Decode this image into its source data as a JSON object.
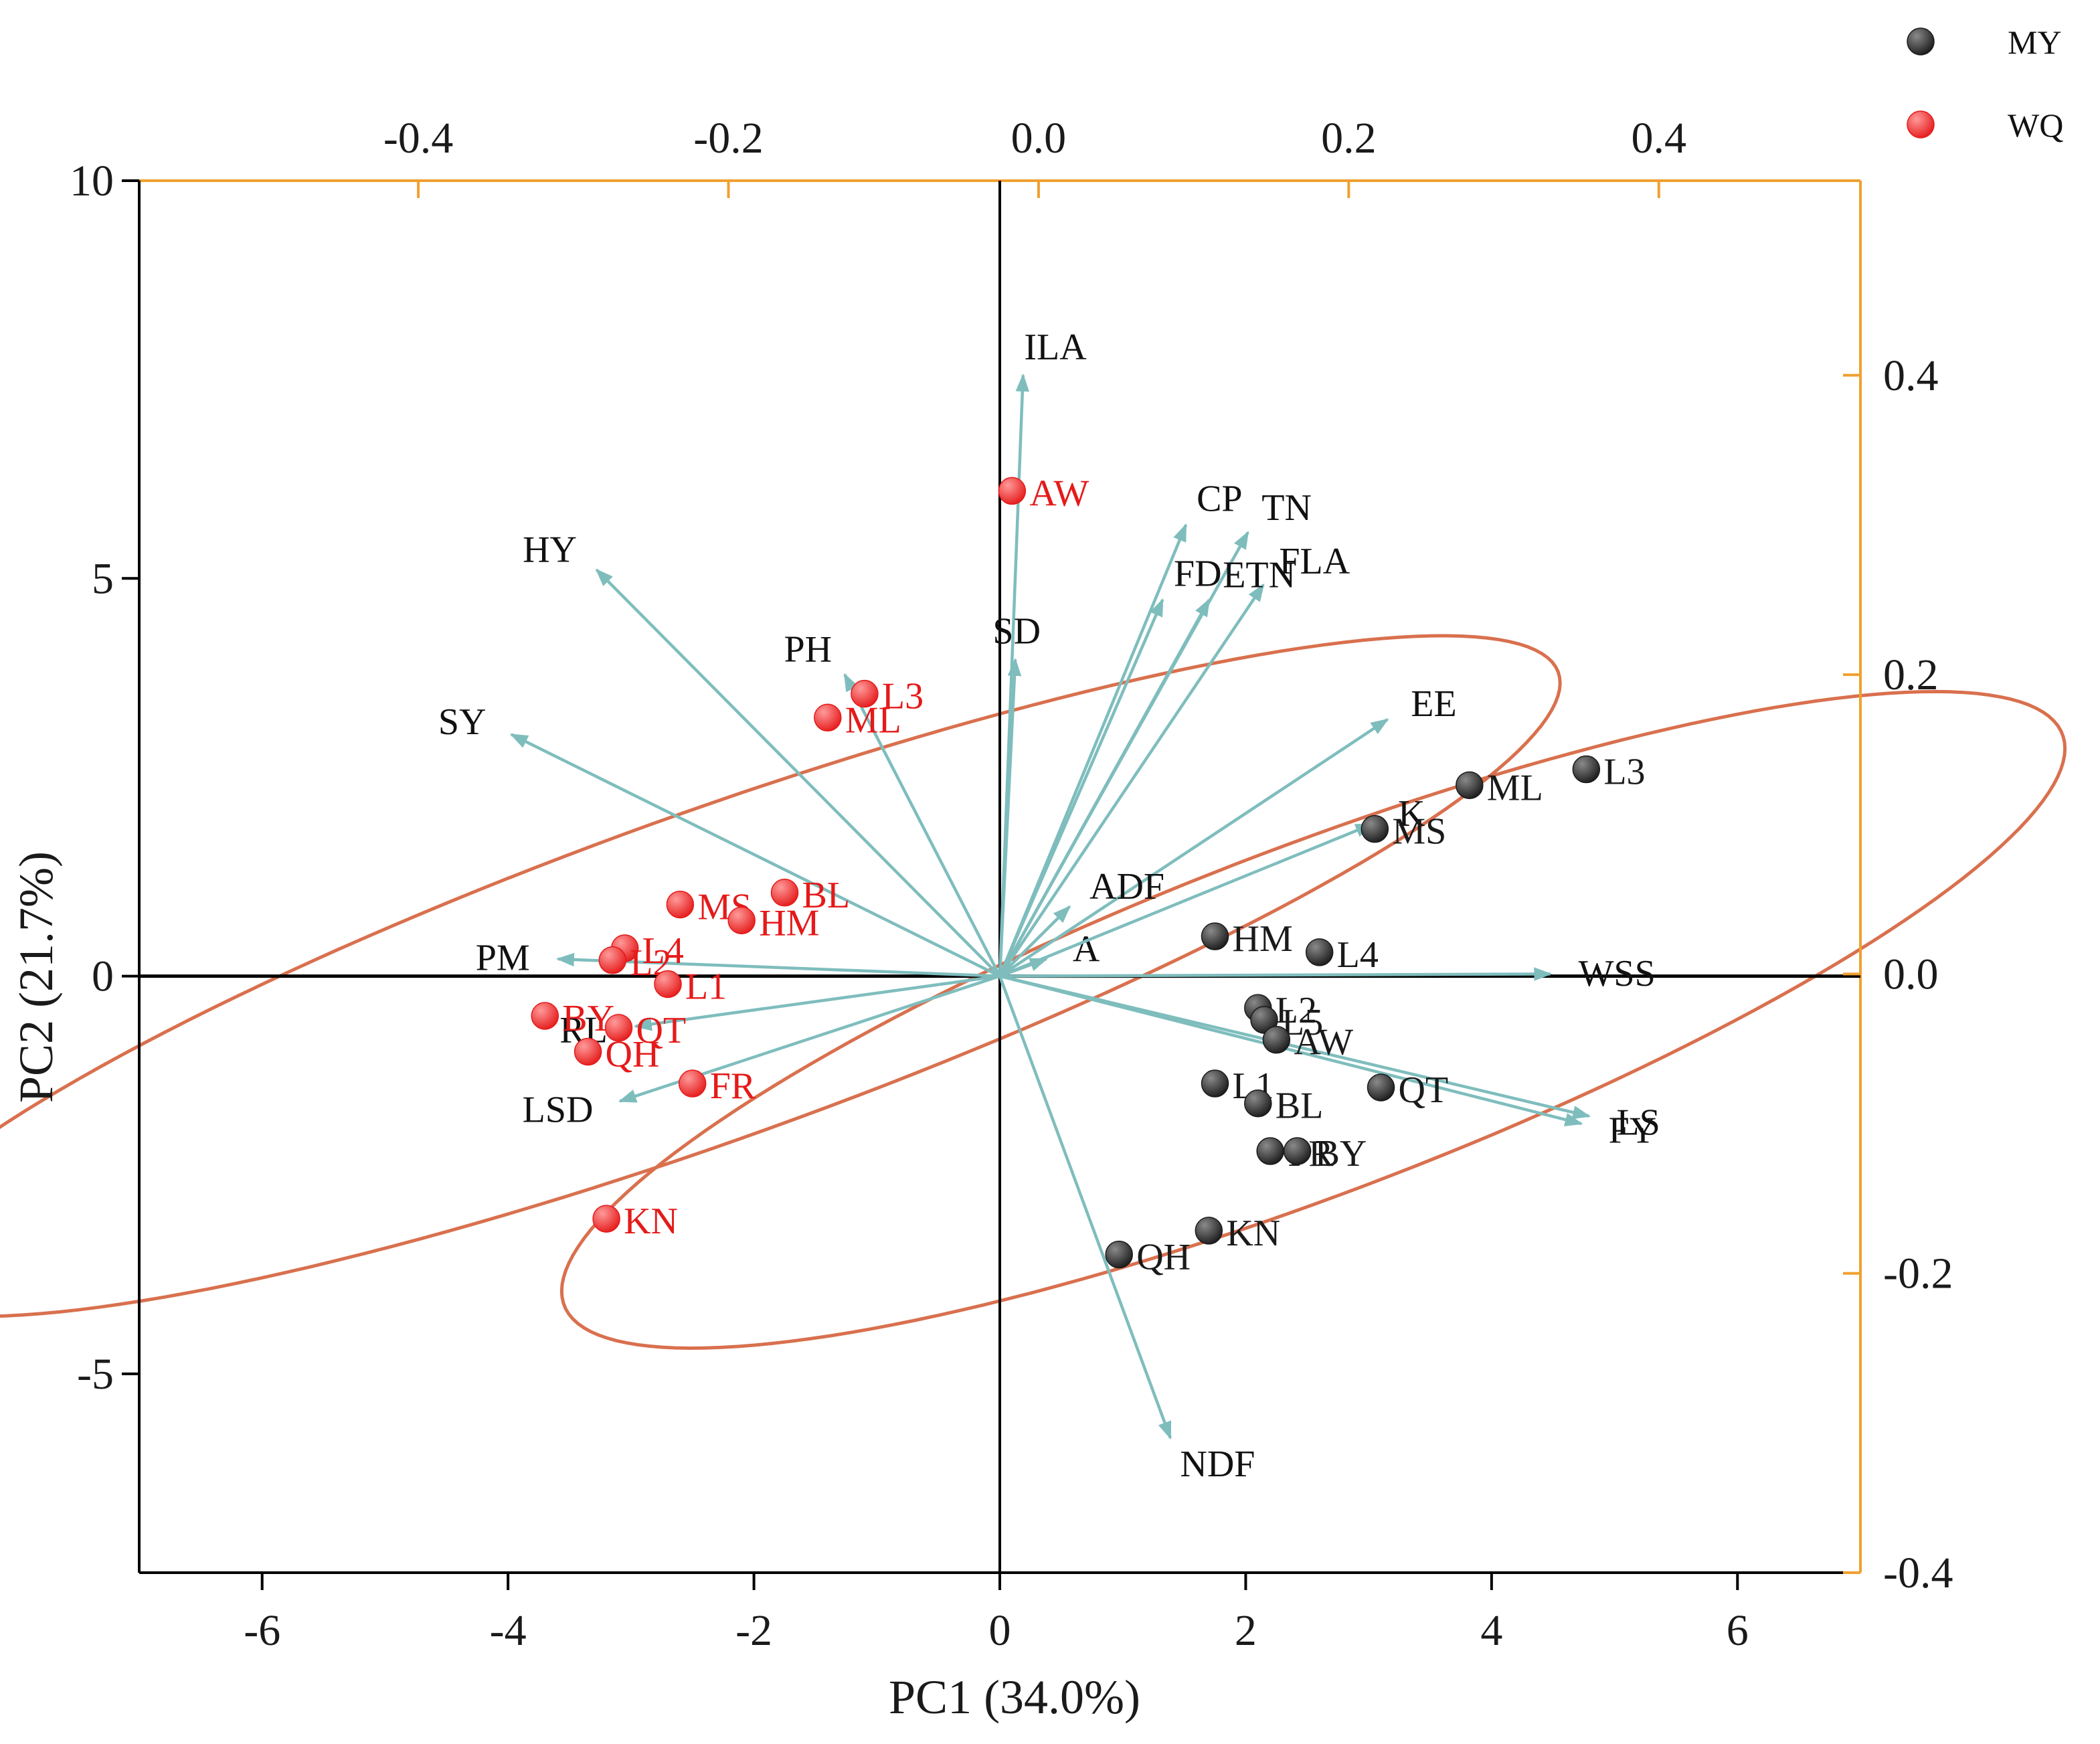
{
  "chart_data": {
    "type": "scatter",
    "subtype": "PCA biplot",
    "xlabel": "PC1 (34.0%)",
    "ylabel": "PC2 (21.7%)",
    "xlim": [
      -7,
      7
    ],
    "ylim": [
      -7.5,
      10
    ],
    "xticks": [
      -6,
      -4,
      -2,
      0,
      2,
      4,
      6
    ],
    "yticks": [
      -5,
      0,
      5,
      10
    ],
    "xtick_labels": [
      "-6",
      "-4",
      "-2",
      "0",
      "2",
      "4",
      "6"
    ],
    "ytick_labels": [
      "-5",
      "0",
      "5",
      "10"
    ],
    "loading_xlim": [
      -0.58,
      0.53
    ],
    "loading_ylim": [
      -0.4,
      0.53
    ],
    "top_ticks": [
      -0.4,
      -0.2,
      0.0,
      0.2,
      0.4
    ],
    "top_tick_labels": [
      "-0.4",
      "-0.2",
      "0.0",
      "0.2",
      "0.4"
    ],
    "right_ticks": [
      -0.4,
      -0.2,
      0.0,
      0.2,
      0.4
    ],
    "right_tick_labels": [
      "-0.4",
      "-0.2",
      "0.0",
      "0.2",
      "0.4"
    ],
    "legend": {
      "placement": "top-right outside",
      "entries": [
        {
          "name": "MY",
          "color": "#1a1a1a"
        },
        {
          "name": "WQ",
          "color": "#e51a1a"
        }
      ]
    },
    "colors": {
      "axis_secondary": "#f0a030",
      "loading": "#7fbdbd",
      "ellipse": "#d9704e",
      "MY": "#1a1a1a",
      "WQ": "#e51a1a"
    },
    "series": [
      {
        "name": "MY",
        "points": [
          {
            "label": "L3",
            "x": 4.77,
            "y": 2.6
          },
          {
            "label": "ML",
            "x": 3.82,
            "y": 2.4
          },
          {
            "label": "MS",
            "x": 3.05,
            "y": 1.85
          },
          {
            "label": "HM",
            "x": 1.75,
            "y": 0.5
          },
          {
            "label": "L4",
            "x": 2.6,
            "y": 0.3
          },
          {
            "label": "L2",
            "x": 2.1,
            "y": -0.4
          },
          {
            "label": "L5",
            "x": 2.15,
            "y": -0.55
          },
          {
            "label": "AW",
            "x": 2.25,
            "y": -0.8
          },
          {
            "label": "L1",
            "x": 1.75,
            "y": -1.35
          },
          {
            "label": "BL",
            "x": 2.1,
            "y": -1.6
          },
          {
            "label": "QT",
            "x": 3.1,
            "y": -1.4
          },
          {
            "label": "FR",
            "x": 2.2,
            "y": -2.2
          },
          {
            "label": "BY",
            "x": 2.42,
            "y": -2.2
          },
          {
            "label": "KN",
            "x": 1.7,
            "y": -3.2
          },
          {
            "label": "QH",
            "x": 0.97,
            "y": -3.5
          }
        ]
      },
      {
        "name": "WQ",
        "points": [
          {
            "label": "AW",
            "x": 0.1,
            "y": 6.1
          },
          {
            "label": "L3",
            "x": -1.1,
            "y": 3.55
          },
          {
            "label": "ML",
            "x": -1.4,
            "y": 3.25
          },
          {
            "label": "MS",
            "x": -2.6,
            "y": 0.9
          },
          {
            "label": "BL",
            "x": -1.75,
            "y": 1.05
          },
          {
            "label": "HM",
            "x": -2.1,
            "y": 0.7
          },
          {
            "label": "L4",
            "x": -3.05,
            "y": 0.35
          },
          {
            "label": "L2",
            "x": -3.15,
            "y": 0.2
          },
          {
            "label": "L1",
            "x": -2.7,
            "y": -0.1
          },
          {
            "label": "BY",
            "x": -3.7,
            "y": -0.5
          },
          {
            "label": "QT",
            "x": -3.1,
            "y": -0.65
          },
          {
            "label": "QH",
            "x": -3.35,
            "y": -0.95
          },
          {
            "label": "FR",
            "x": -2.5,
            "y": -1.35
          },
          {
            "label": "KN",
            "x": -3.2,
            "y": -3.05
          }
        ]
      }
    ],
    "loadings": [
      {
        "label": "ILA",
        "x": -0.01,
        "y": 0.4
      },
      {
        "label": "CP",
        "x": 0.095,
        "y": 0.3
      },
      {
        "label": "TN",
        "x": 0.135,
        "y": 0.295
      },
      {
        "label": "FLA",
        "x": 0.145,
        "y": 0.26
      },
      {
        "label": "FD",
        "x": 0.08,
        "y": 0.25
      },
      {
        "label": "ETN",
        "x": 0.11,
        "y": 0.25
      },
      {
        "label": "SD",
        "x": -0.015,
        "y": 0.21
      },
      {
        "label": "HY",
        "x": -0.285,
        "y": 0.27
      },
      {
        "label": "PH",
        "x": -0.125,
        "y": 0.2
      },
      {
        "label": "SY",
        "x": -0.34,
        "y": 0.16
      },
      {
        "label": "EE",
        "x": 0.225,
        "y": 0.17
      },
      {
        "label": "ADF",
        "x": 0.02,
        "y": 0.045
      },
      {
        "label": "A",
        "x": 0.005,
        "y": 0.01
      },
      {
        "label": "K",
        "x": 0.215,
        "y": 0.1
      },
      {
        "label": "WSS",
        "x": 0.33,
        "y": 0.0
      },
      {
        "label": "LS",
        "x": 0.355,
        "y": -0.095
      },
      {
        "label": "FY",
        "x": 0.35,
        "y": -0.1
      },
      {
        "label": "NDF",
        "x": 0.085,
        "y": -0.31
      },
      {
        "label": "PM",
        "x": -0.31,
        "y": 0.01
      },
      {
        "label": "RL",
        "x": -0.26,
        "y": -0.035
      },
      {
        "label": "LSD",
        "x": -0.27,
        "y": -0.085
      }
    ],
    "ellipses": [
      {
        "group": "WQ",
        "center": [
          -2.35,
          0
        ],
        "semi_axes": [
          1.9,
          7.9
        ],
        "rotation_deg": 120
      },
      {
        "group": "MY",
        "center": [
          2.55,
          -0.55
        ],
        "semi_axes": [
          2.0,
          7.1
        ],
        "rotation_deg": 122
      }
    ]
  }
}
